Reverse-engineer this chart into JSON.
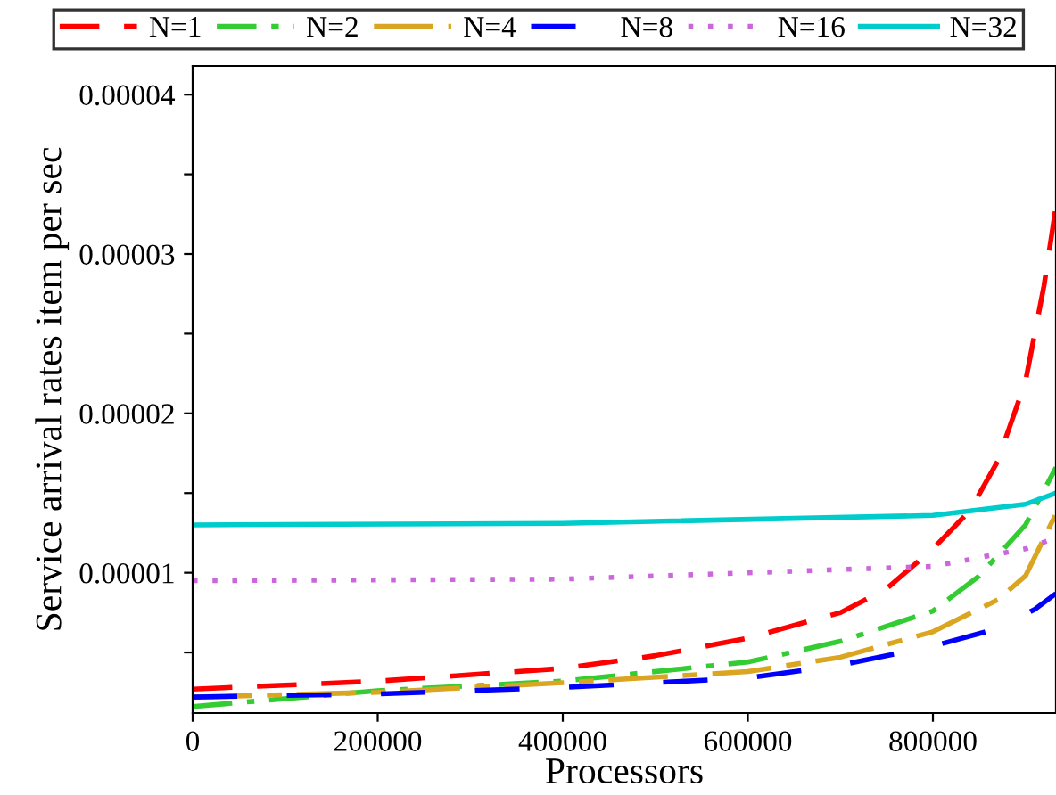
{
  "chart_data": {
    "type": "line",
    "xlabel": "Processors",
    "ylabel": "Service arrival rates item per sec",
    "xlim": [
      0,
      933000
    ],
    "ylim": [
      1.2e-06,
      4.18e-05
    ],
    "xticks": [
      0,
      200000,
      400000,
      600000,
      800000
    ],
    "yticks": [
      {
        "value": 5e-06,
        "label": null
      },
      {
        "value": 1e-05,
        "label": "0.00001"
      },
      {
        "value": 1.5e-05,
        "label": null
      },
      {
        "value": 2e-05,
        "label": "0.00002"
      },
      {
        "value": 2.5e-05,
        "label": null
      },
      {
        "value": 3e-05,
        "label": "0.00003"
      },
      {
        "value": 3.5e-05,
        "label": null
      },
      {
        "value": 4e-05,
        "label": "0.00004"
      }
    ],
    "grid": false,
    "legend": "top",
    "marker": "none",
    "series": [
      {
        "name": "N=1",
        "color": "#ff0000",
        "line_style": "dashed",
        "x": [
          0,
          200000,
          400000,
          500000,
          600000,
          700000,
          750000,
          800000,
          840000,
          870000,
          900000,
          920000,
          933000
        ],
        "values": [
          2.7e-06,
          3.2e-06,
          4e-06,
          4.8e-06,
          5.9e-06,
          7.5e-06,
          9e-06,
          1.15e-05,
          1.39e-05,
          1.7e-05,
          2.2e-05,
          2.8e-05,
          3.3e-05
        ]
      },
      {
        "name": "N=2",
        "color": "#33cc33",
        "line_style": "dashdot",
        "x": [
          0,
          200000,
          400000,
          600000,
          700000,
          800000,
          850000,
          900000,
          933000
        ],
        "values": [
          1.6e-06,
          2.6e-06,
          3.2e-06,
          4.4e-06,
          5.7e-06,
          7.6e-06,
          9.8e-06,
          1.3e-05,
          1.66e-05
        ]
      },
      {
        "name": "N=4",
        "color": "#daa520",
        "line_style": "longshort",
        "x": [
          0,
          200000,
          400000,
          600000,
          700000,
          800000,
          870000,
          900000,
          933000
        ],
        "values": [
          2.2e-06,
          2.5e-06,
          3.1e-06,
          3.8e-06,
          4.7e-06,
          6.3e-06,
          8.3e-06,
          9.8e-06,
          1.37e-05
        ]
      },
      {
        "name": "N=8",
        "color": "#0000ff",
        "line_style": "longgap",
        "x": [
          0,
          200000,
          400000,
          600000,
          700000,
          800000,
          870000,
          910000,
          933000
        ],
        "values": [
          2.2e-06,
          2.4e-06,
          2.8e-06,
          3.4e-06,
          4.2e-06,
          5.4e-06,
          6.5e-06,
          7.7e-06,
          8.7e-06
        ]
      },
      {
        "name": "N=16",
        "color": "#cc66dd",
        "line_style": "dotted",
        "x": [
          0,
          400000,
          800000,
          900000,
          933000
        ],
        "values": [
          9.5e-06,
          9.6e-06,
          1.04e-05,
          1.15e-05,
          1.22e-05
        ]
      },
      {
        "name": "N=32",
        "color": "#00cccc",
        "line_style": "solid",
        "x": [
          0,
          400000,
          800000,
          900000,
          933000
        ],
        "values": [
          1.3e-05,
          1.31e-05,
          1.36e-05,
          1.43e-05,
          1.5e-05
        ]
      }
    ]
  }
}
